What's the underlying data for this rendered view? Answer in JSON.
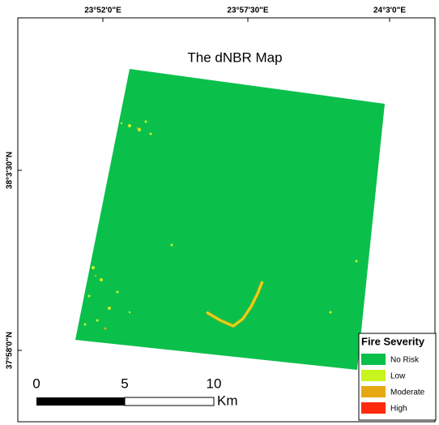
{
  "map": {
    "title": "The dNBR Map",
    "top_labels": [
      "23°52'0\"E",
      "23°57'30\"E",
      "24°3'0\"E"
    ],
    "left_labels": [
      "38°3'30\"N",
      "37°58'0\"N"
    ],
    "legend": {
      "title": "Fire Severity",
      "items": [
        {
          "name": "No Risk",
          "color": "#0bbf4b"
        },
        {
          "name": "Low",
          "color": "#c8f51e"
        },
        {
          "name": "Moderate",
          "color": "#e6a812"
        },
        {
          "name": "High",
          "color": "#ff2a0e"
        }
      ]
    },
    "scale_bar": {
      "labels": [
        "0",
        "5",
        "10"
      ],
      "unit": "Km"
    }
  }
}
